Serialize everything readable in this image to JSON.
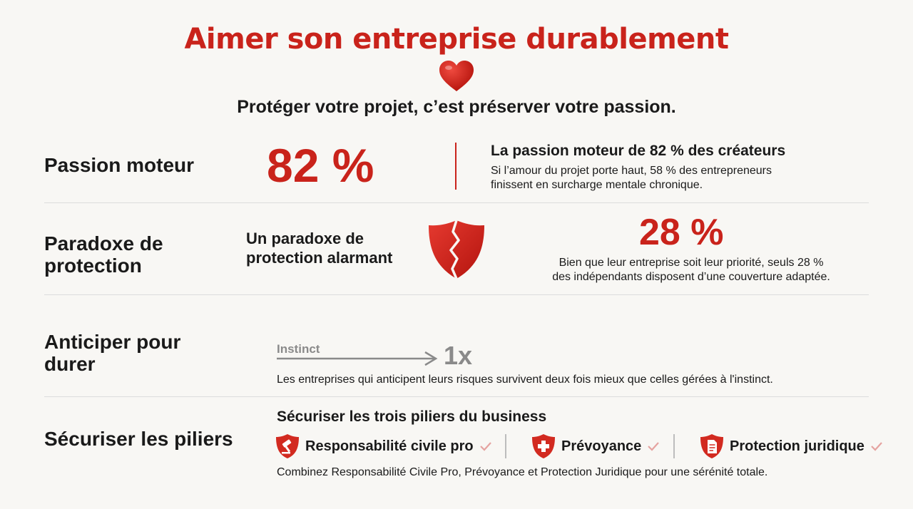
{
  "header": {
    "title": "Aimer son entreprise durablement",
    "subtitle": "Protéger votre projet, c’est préserver votre passion."
  },
  "colors": {
    "accent": "#c9231b",
    "muted": "#8a8a8a",
    "text": "#1a1a1a"
  },
  "rows": [
    {
      "label": "Passion moteur",
      "stat": "82 %",
      "heading": "La passion moteur de 82 % des créateurs",
      "body_line1": "Si l’amour du projet porte haut, 58 % des entrepreneurs",
      "body_line2": "finissent en surcharge mentale chronique."
    },
    {
      "label_line1": "Paradoxe de",
      "label_line2": "protection",
      "heading_line1": "Un paradoxe de",
      "heading_line2": "protection alarmant",
      "icon": "broken-shield-icon",
      "stat": "28 %",
      "body_line1": "Bien que leur entreprise soit leur priorité, seuls 28 %",
      "body_line2": "des indépendants disposent d’une couverture adaptée."
    },
    {
      "label_line1": "Anticiper pour",
      "label_line2": "durer",
      "arrow_label": "Instinct",
      "multiplier": "1x",
      "body": "Les entreprises qui anticipent leurs risques survivent deux fois mieux que celles gérées à l'instinct."
    },
    {
      "label": "Sécuriser les piliers",
      "heading": "Sécuriser les trois piliers du business",
      "pillars": [
        {
          "label": "Responsabilité civile pro",
          "icon": "gavel-shield-icon"
        },
        {
          "label": "Prévoyance",
          "icon": "medical-cross-shield-icon"
        },
        {
          "label": "Protection juridique",
          "icon": "document-shield-icon"
        }
      ],
      "body": "Combinez Responsabilité Civile Pro, Prévoyance et Protection Juridique pour une sérénité totale."
    }
  ]
}
